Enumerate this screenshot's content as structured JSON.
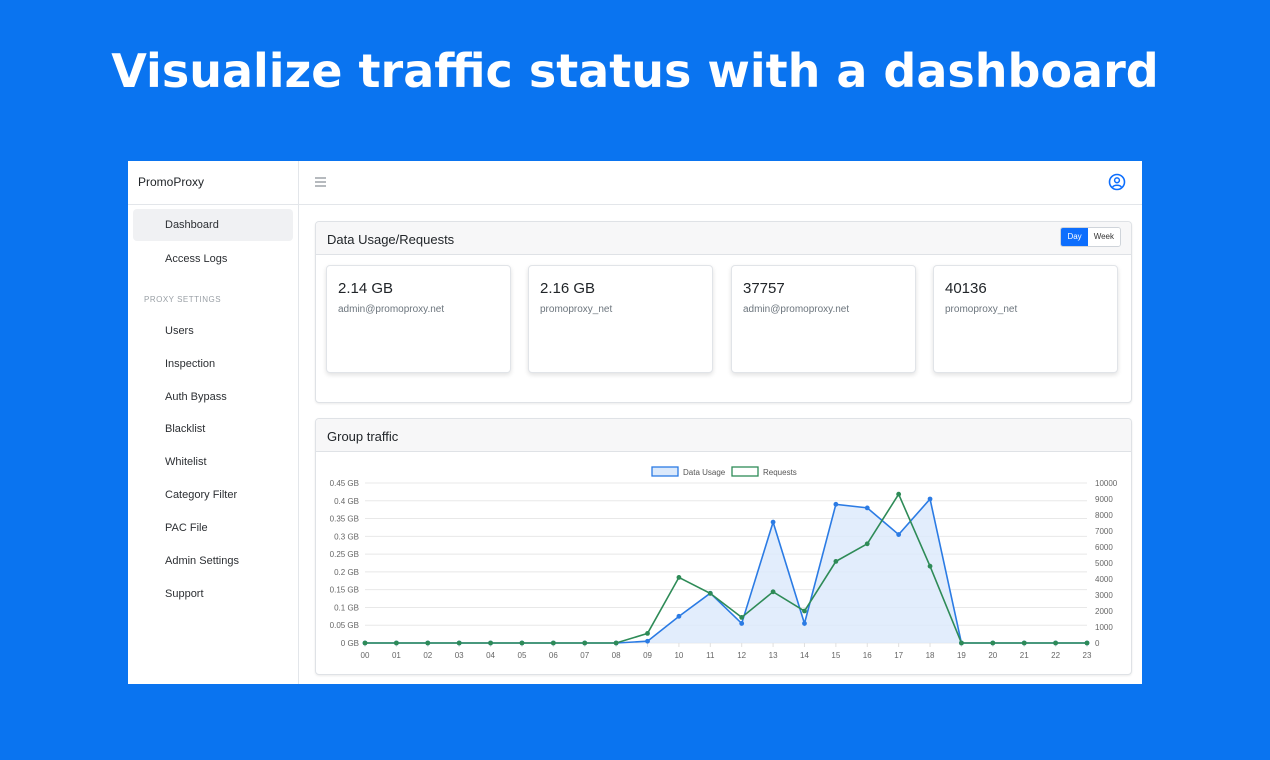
{
  "hero": {
    "title": "Visualize traffic status with a dashboard"
  },
  "app": {
    "brand": "PromoProxy",
    "nav": [
      {
        "label": "Dashboard",
        "active": true
      },
      {
        "label": "Access Logs"
      }
    ],
    "section_label": "PROXY SETTINGS",
    "settings_nav": [
      {
        "label": "Users"
      },
      {
        "label": "Inspection"
      },
      {
        "label": "Auth Bypass"
      },
      {
        "label": "Blacklist"
      },
      {
        "label": "Whitelist"
      },
      {
        "label": "Category Filter"
      },
      {
        "label": "PAC File"
      },
      {
        "label": "Admin Settings"
      },
      {
        "label": "Support"
      }
    ],
    "icons": {
      "menu": "menu-icon",
      "user": "user-circle-icon"
    },
    "accent": "#0d6efd"
  },
  "usage_card": {
    "title": "Data Usage/Requests",
    "toggle": {
      "day": "Day",
      "week": "Week",
      "selected": "Day"
    },
    "stats": [
      {
        "value": "2.14 GB",
        "label": "admin@promoproxy.net"
      },
      {
        "value": "2.16 GB",
        "label": "promoproxy_net"
      },
      {
        "value": "37757",
        "label": "admin@promoproxy.net"
      },
      {
        "value": "40136",
        "label": "promoproxy_net"
      }
    ]
  },
  "traffic_card": {
    "title": "Group traffic"
  },
  "chart_data": {
    "type": "line",
    "categories": [
      "00",
      "01",
      "02",
      "03",
      "04",
      "05",
      "06",
      "07",
      "08",
      "09",
      "10",
      "11",
      "12",
      "13",
      "14",
      "15",
      "16",
      "17",
      "18",
      "19",
      "20",
      "21",
      "22",
      "23"
    ],
    "series": [
      {
        "name": "Data Usage",
        "axis": "left",
        "color": "#2b7be4",
        "fill": "#dbe9fb",
        "values": [
          0,
          0,
          0,
          0,
          0,
          0,
          0,
          0,
          0,
          0.005,
          0.075,
          0.14,
          0.055,
          0.34,
          0.055,
          0.39,
          0.38,
          0.305,
          0.405,
          0,
          0,
          0,
          0,
          0
        ]
      },
      {
        "name": "Requests",
        "axis": "right",
        "color": "#2e8b57",
        "values": [
          0,
          0,
          0,
          0,
          0,
          0,
          0,
          0,
          0,
          600,
          4100,
          3100,
          1600,
          3200,
          2000,
          5100,
          6200,
          9300,
          4800,
          0,
          0,
          0,
          0,
          0
        ]
      }
    ],
    "y_left": {
      "ticks": [
        "0 GB",
        "0.05 GB",
        "0.1 GB",
        "0.15 GB",
        "0.2 GB",
        "0.25 GB",
        "0.3 GB",
        "0.35 GB",
        "0.4 GB",
        "0.45 GB"
      ],
      "max": 0.45
    },
    "y_right": {
      "ticks": [
        "0",
        "1000",
        "2000",
        "3000",
        "4000",
        "5000",
        "6000",
        "7000",
        "8000",
        "9000",
        "10000"
      ],
      "max": 10000
    },
    "legend_position": "top",
    "grid": true
  }
}
